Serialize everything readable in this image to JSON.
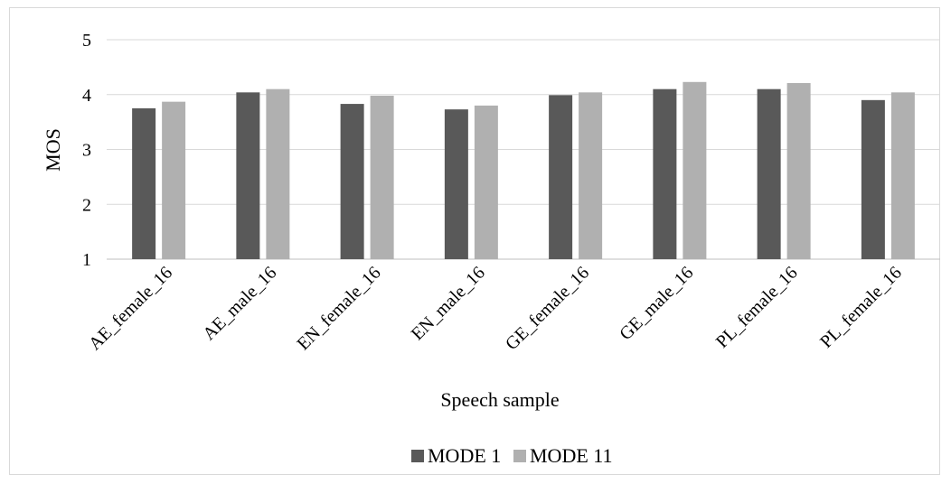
{
  "chart_data": {
    "type": "bar",
    "categories": [
      "AE_female_16",
      "AE_male_16",
      "EN_female_16",
      "EN_male_16",
      "GE_female_16",
      "GE_male_16",
      "PL_female_16",
      "PL_female_16"
    ],
    "series": [
      {
        "name": "MODE 1",
        "values": [
          3.75,
          4.04,
          3.83,
          3.73,
          3.99,
          4.1,
          4.1,
          3.9
        ],
        "color": "#595959"
      },
      {
        "name": "MODE 11",
        "values": [
          3.87,
          4.1,
          3.98,
          3.8,
          4.04,
          4.23,
          4.21,
          4.04
        ],
        "color": "#b0b0b0"
      }
    ],
    "xlabel": "Speech sample",
    "ylabel": "MOS",
    "ylim": [
      1,
      5
    ],
    "yticks": [
      "1",
      "2",
      "3",
      "4",
      "5"
    ],
    "grid": true,
    "legend_position": "bottom"
  }
}
